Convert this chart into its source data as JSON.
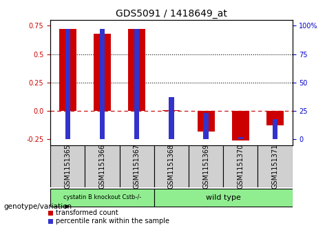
{
  "title": "GDS5091 / 1418649_at",
  "samples": [
    "GSM1151365",
    "GSM1151366",
    "GSM1151367",
    "GSM1151368",
    "GSM1151369",
    "GSM1151370",
    "GSM1151371"
  ],
  "red_values": [
    0.72,
    0.68,
    0.72,
    0.005,
    -0.18,
    -0.26,
    -0.13
  ],
  "blue_values": [
    97,
    97,
    97,
    37,
    23,
    2,
    18
  ],
  "ylim_left": [
    -0.3,
    0.8
  ],
  "ylim_right": [
    -5,
    105
  ],
  "y_ticks_left": [
    -0.25,
    0.0,
    0.25,
    0.5,
    0.75
  ],
  "y_ticks_right": [
    0,
    25,
    50,
    75,
    100
  ],
  "hlines": [
    0.25,
    0.5
  ],
  "zero_line": 0.0,
  "red_bar_width": 0.5,
  "blue_bar_width": 0.15,
  "bar_color_red": "#cc0000",
  "bar_color_blue": "#3333cc",
  "zero_line_color": "#cc2222",
  "group1_label": "cystatin B knockout Cstb-/-",
  "group1_color": "#90ee90",
  "group2_label": "wild type",
  "group2_color": "#90ee90",
  "genotype_label": "genotype/variation",
  "legend_red": "transformed count",
  "legend_blue": "percentile rank within the sample",
  "title_fontsize": 10,
  "tick_fontsize": 7,
  "label_fontsize": 7,
  "bg_gray": "#d0d0d0"
}
